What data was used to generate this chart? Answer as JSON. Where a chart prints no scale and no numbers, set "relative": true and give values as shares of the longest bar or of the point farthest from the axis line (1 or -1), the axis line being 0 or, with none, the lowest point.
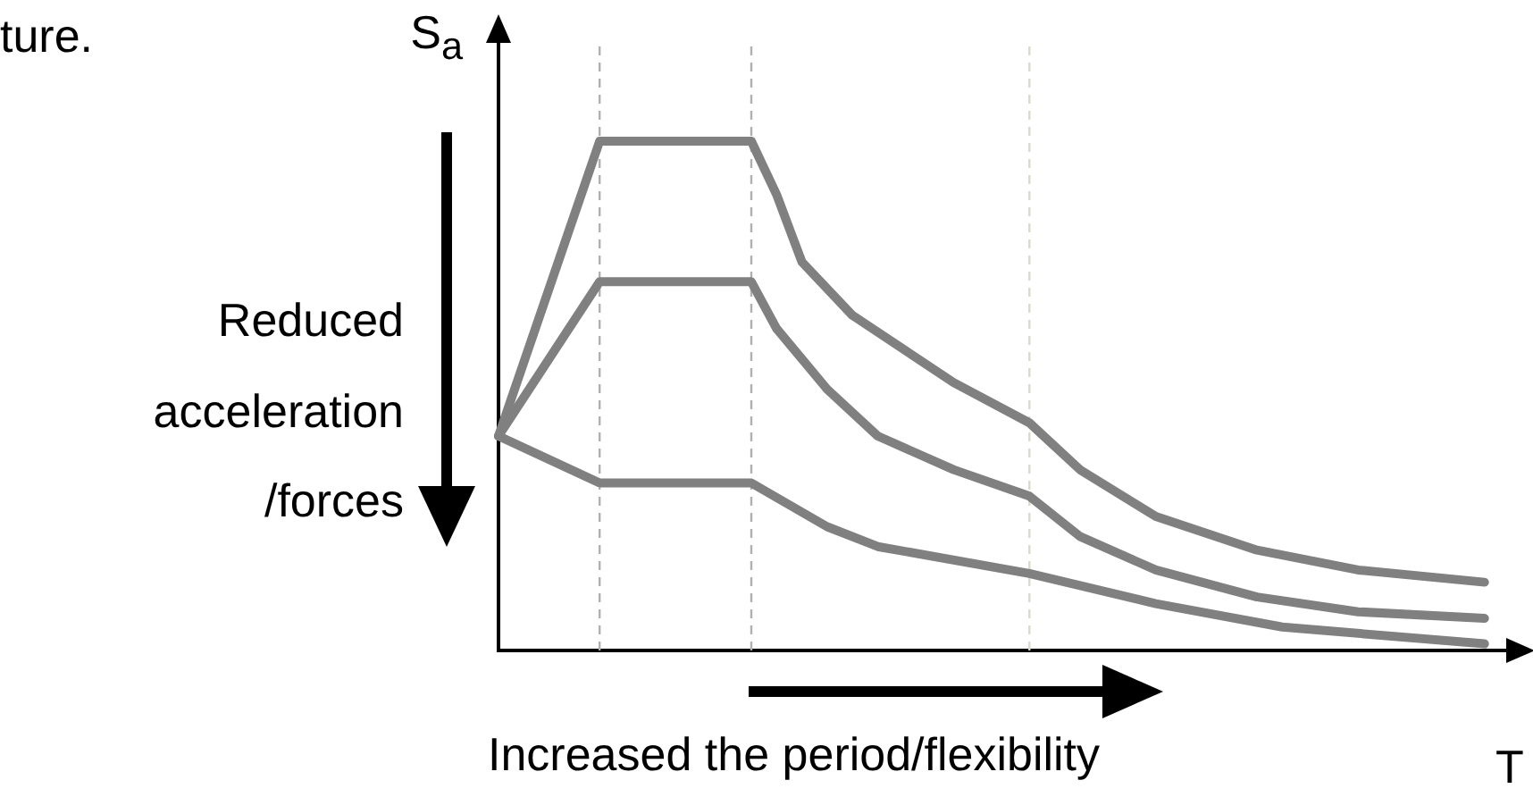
{
  "chart_data": {
    "type": "line",
    "relative": true,
    "xlabel": "T",
    "ylabel": "S$_{a}$",
    "categories": [
      null,
      null,
      null,
      null,
      null,
      null,
      null,
      null,
      null,
      null,
      null,
      null,
      null,
      null,
      null,
      null,
      null,
      null,
      null,
      null,
      null,
      null,
      null,
      null,
      null,
      null,
      null,
      null,
      null,
      null,
      null,
      null,
      null,
      null,
      null,
      null,
      null,
      null,
      null,
      null,
      null
    ],
    "tick_labels": false,
    "grid": false,
    "legend": false,
    "marker": "none",
    "line_style": "solid",
    "annotations": [
      "ture.",
      "Reduced acceleration /forces",
      "Increased the period/flexibility"
    ],
    "series": [
      {
        "color": "#808080",
        "values": [
          0.421,
          null,
          null,
          null,
          1,
          null,
          null,
          null,
          null,
          null,
          1,
          0.895,
          0.763,
          null,
          0.658,
          null,
          null,
          null,
          0.526,
          null,
          null,
          0.447,
          null,
          0.355,
          null,
          null,
          0.263,
          null,
          null,
          null,
          0.197,
          null,
          null,
          null,
          0.158,
          null,
          null,
          null,
          null,
          0.134,
          null
        ]
      },
      {
        "color": "#808080",
        "values": [
          0.421,
          null,
          null,
          null,
          0.724,
          null,
          null,
          null,
          null,
          null,
          0.724,
          0.632,
          null,
          0.513,
          null,
          0.421,
          null,
          null,
          0.355,
          null,
          null,
          0.303,
          null,
          0.224,
          null,
          null,
          0.158,
          null,
          null,
          null,
          0.105,
          null,
          null,
          null,
          0.076,
          null,
          null,
          null,
          null,
          0.063,
          null
        ]
      },
      {
        "color": "#808080",
        "values": [
          0.421,
          null,
          null,
          null,
          0.329,
          null,
          null,
          null,
          null,
          null,
          0.329,
          null,
          null,
          0.243,
          null,
          0.204,
          null,
          null,
          null,
          null,
          null,
          0.151,
          null,
          null,
          null,
          null,
          0.092,
          null,
          null,
          null,
          null,
          0.046,
          null,
          null,
          null,
          null,
          null,
          null,
          null,
          0.013,
          null
        ]
      }
    ]
  }
}
